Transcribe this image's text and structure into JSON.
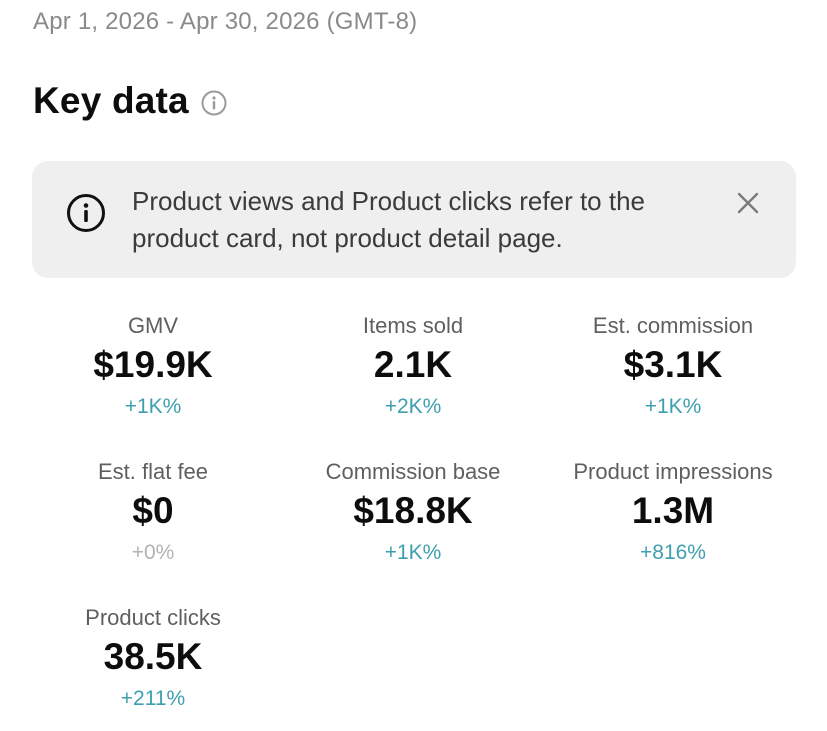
{
  "header": {
    "date_range": "Apr 1, 2026 - Apr 30, 2026 (GMT-8)",
    "title": "Key data",
    "title_icon": "info-icon"
  },
  "banner": {
    "icon": "info-icon",
    "text": "Product views and Product clicks refer to the product card, not product detail page.",
    "close_icon": "close-icon"
  },
  "metrics": [
    {
      "label": "GMV",
      "value": "$19.9K",
      "change": "+1K%"
    },
    {
      "label": "Items sold",
      "value": "2.1K",
      "change": "+2K%"
    },
    {
      "label": "Est. commission",
      "value": "$3.1K",
      "change": "+1K%"
    },
    {
      "label": "Est. flat fee",
      "value": "$0",
      "change": "+0%"
    },
    {
      "label": "Commission base",
      "value": "$18.8K",
      "change": "+1K%"
    },
    {
      "label": "Product impressions",
      "value": "1.3M",
      "change": "+816%"
    },
    {
      "label": "Product clicks",
      "value": "38.5K",
      "change": "+211%"
    }
  ],
  "colors": {
    "positive_change": "#3d9fae",
    "neutral_change": "#b3b3b3",
    "banner_background": "#efefef"
  }
}
